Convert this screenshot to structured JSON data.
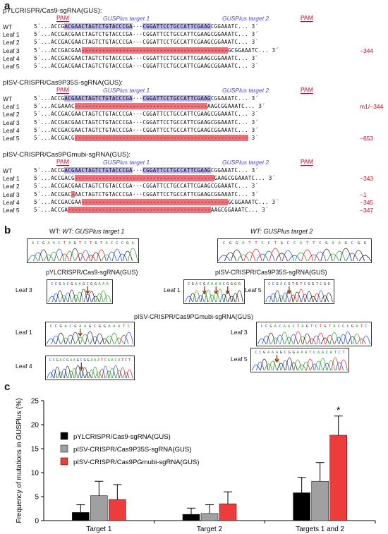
{
  "panel_labels": {
    "a": "a",
    "b": "b",
    "c": "c"
  },
  "panel_a": {
    "groups": [
      {
        "title": "pYLCRISPR/Cas9-sgRNA(GUS):",
        "pam_label": "PAM",
        "target1_label": "GUSPlus target 1",
        "target2_label": "GUSPlus target 2",
        "rows": [
          {
            "label": "WT",
            "seq": "5´...ACCGACGAACTAGTCTGTACCCGA···CGGATTCCTGCCATTCGAAGCGGAAATC... 3´",
            "mut": ""
          },
          {
            "label": "Leaf 1",
            "seq": "5´...ACCGACGAACTAGTCTGTACCCGA···CGGATTCCTGCCATTCGAAGCGGAAATC... 3´",
            "mut": ""
          },
          {
            "label": "Leaf 2",
            "seq": "5´...ACCGACGAACTAGTCTGTACCCGA···CGGATTCCTGCCATTCGAAGCGGAAATC... 3´",
            "mut": ""
          },
          {
            "label": "Leaf 3",
            "seq": "5´...ACCGACGAA-------------------------------------------GCGGAAATC... 3´",
            "mut": "−344"
          },
          {
            "label": "Leaf 4",
            "seq": "5´...ACCGACGAACTAGTCTGTACCCGA···CGGATTCCTGCCATTCGAAGCGGAAATC... 3´",
            "mut": ""
          },
          {
            "label": "Leaf 5",
            "seq": "5´...ACCGACGAACTAGTCTGTACCCGA···CGGATTCCTGCCATTCGAAGCGGAAATC... 3´",
            "mut": ""
          }
        ]
      },
      {
        "title": "pISV-CRISPR/Cas9P35S-sgRNA(GUS):",
        "pam_label": "PAM",
        "target1_label": "GUSPlus target 1",
        "target2_label": "GUSPlus target 2",
        "rows": [
          {
            "label": "WT",
            "seq": "5´...ACCGACGAACTAGTCTGTACCCGA···CGGATTCCTGCCATTCGAAGCGGAAATC... 3´",
            "mut": ""
          },
          {
            "label": "Leaf 1",
            "seq": "5´...ACGAAAC---------------------------------------AAGCGGAAATC... 3´",
            "mut": "m1/−344"
          },
          {
            "label": "Leaf 2",
            "seq": "5´...ACCGACGAACTAGTCTGTACCCGA···CGGATTCCTGCCATTCGAAGCGGAAATC... 3´",
            "mut": ""
          },
          {
            "label": "Leaf 3",
            "seq": "5´...ACCGACGAACTAGTCTGTACCCGA···CGGATTCCTGCCATTCGAAGCGGAAATC... 3´",
            "mut": ""
          },
          {
            "label": "Leaf 4",
            "seq": "5´...ACCGACGAACTAGTCTGTACCCGA···CGGATTCCTGCCATTCGAAGCGGAAATC... 3´",
            "mut": ""
          },
          {
            "label": "Leaf 5",
            "seq": "5´...ACCGACG--------------------------------------------------- 3´",
            "mut": "−653"
          }
        ]
      },
      {
        "title": "pISV-CRISPR/Cas9PGmubi-sgRNA(GUS):",
        "pam_label": "PAM",
        "target1_label": "GUSPlus target 1",
        "target2_label": "GUSPlus target 2",
        "rows": [
          {
            "label": "WT",
            "seq": "5´...ACCGACGAACTAGTCTGTACCCGA···CGGATTCCTGCCATTCGAAGCGGAAATC... 3´",
            "mut": ""
          },
          {
            "label": "Leaf 1",
            "seq": "5´...ACCGACG-----------------------------------------GAAGCGGAAATC... 3´",
            "mut": "−343"
          },
          {
            "label": "Leaf 2",
            "seq": "5´...ACCGACGAACTAGTCTGTACCCGA···CGGATTCCTGCCATTCGAAGCGGAAATC... 3´",
            "mut": ""
          },
          {
            "label": "Leaf 3",
            "seq": "5´...ACCGAC-AACTAGTCTGTACCCGA···CGGATTCCTGCCATTCGAAGCGGAAATC... 3´",
            "mut": "−1"
          },
          {
            "label": "Leaf 4",
            "seq": "5´...ACCGACGAA-------------------------------------------GCGGAAATC... 3´",
            "mut": "−345"
          },
          {
            "label": "Leaf 5",
            "seq": "5´...ACCGA------------------------------------------AAGCGGAAATC... 3´",
            "mut": "−347"
          }
        ]
      }
    ]
  },
  "panel_b": {
    "wt_target1_title": "WT: GUSPlus target 1",
    "wt_target2_title": "WT: GUSPlus target 2",
    "wt_target1_seq": "ACGAACTAGTCTGTACCCGA",
    "wt_target2_seq": "CGGATTCCTGCCATTCGAAGCGG",
    "group1_title": "pYLCRISPR/Cas9-sgRNA(GUS)",
    "group2_title": "pISV-CRISPR/Cas9P35S-sgRNA(GUS)",
    "group3_title": "pISV-CRISPR/Cas9PGmubi-sgRNA(GUS)",
    "traces": [
      {
        "label": "Leaf 3",
        "seq": "CCGACGAAGCGGAAA"
      },
      {
        "label": "Leaf 1",
        "seq": "CGACGAAAACGGGG"
      },
      {
        "label": "Leaf 5",
        "seq": "CCGACGTGTCGGTCGG"
      },
      {
        "label": "Leaf 1",
        "seq": "CCGACGAAGCGGAAATC"
      },
      {
        "label": "Leaf 3",
        "seq": "CCGACAACTAGTCTGTACCCGATC"
      },
      {
        "label": "Leaf 4",
        "seq": "CCGACGAAGCGGAAATCAACATCT"
      },
      {
        "label": "Leaf 5",
        "seq": "CCGAAAGCGGAAATCAACATCT"
      }
    ]
  },
  "chart_data": {
    "type": "bar",
    "title": "",
    "ylabel": "Frequency of mutations in GUSPlus (%)",
    "xlabel": "",
    "ylim": [
      0,
      25
    ],
    "yticks": [
      0,
      5,
      10,
      15,
      20,
      25
    ],
    "categories": [
      "Target 1",
      "Target 2",
      "Targets 1 and 2"
    ],
    "series": [
      {
        "name": "pYLCRISPR/Cas9-sgRNA(GUS)",
        "color": "#000000",
        "values": [
          1.7,
          1.3,
          5.8
        ],
        "errors": [
          1.6,
          1.3,
          3.2
        ]
      },
      {
        "name": "pISV-CRISPR/Cas9P35S-sgRNA(GUS)",
        "color": "#a0a0a0",
        "values": [
          5.2,
          1.5,
          8.2
        ],
        "errors": [
          3.0,
          1.8,
          3.9
        ]
      },
      {
        "name": "pISV-CRISPR/Cas9PGmubi-sgRNA(GUS)",
        "color": "#ee3b3b",
        "values": [
          4.4,
          3.5,
          17.8
        ],
        "errors": [
          3.1,
          2.5,
          4.0
        ]
      }
    ],
    "annotations": [
      {
        "category": "Targets 1 and 2",
        "series": 2,
        "text": "*"
      }
    ],
    "legend_position": "top-left",
    "grid": false
  }
}
